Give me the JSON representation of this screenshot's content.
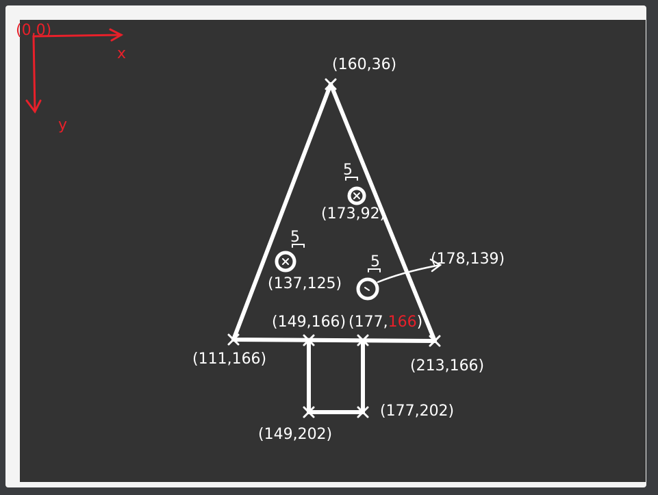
{
  "diagram": {
    "origin_label": "(0,0)",
    "axis_x_label": "x",
    "axis_y_label": "y",
    "points": {
      "apex": "(160,36)",
      "base_left": "(111,166)",
      "base_right": "(213,166)",
      "trunk_top_left": "(149,166)",
      "trunk_top_right_prefix": "(177,",
      "trunk_top_right_y": "166",
      "trunk_top_right_suffix": ")",
      "trunk_bottom_left": "(149,202)",
      "trunk_bottom_right": "(177,202)"
    },
    "ornaments": [
      {
        "center_label": "(173,92)",
        "size_label": "5"
      },
      {
        "center_label": "(137,125)",
        "size_label": "5"
      },
      {
        "size_label": "5",
        "arrow_label": "(178,139)"
      }
    ],
    "colors": {
      "background": "#333333",
      "chalk": "#ffffff",
      "annotation_red": "#e8202a",
      "frame": "#f4f4f4"
    }
  }
}
